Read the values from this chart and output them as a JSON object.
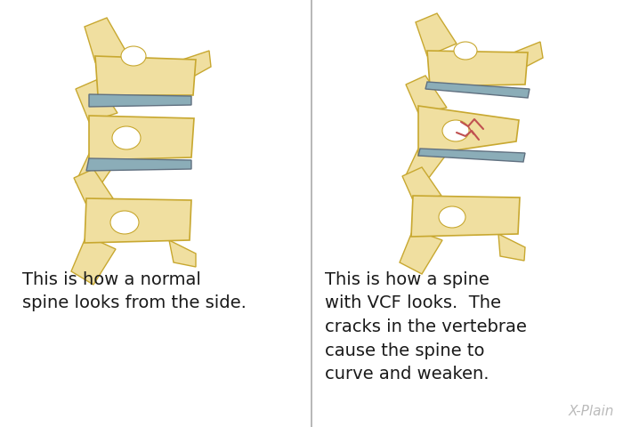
{
  "bg_color": "#FFFFFF",
  "divider_color": "#AAAAAA",
  "bone_fill": "#F0DFA0",
  "bone_edge": "#C8A830",
  "bone_shadow": "#D4B870",
  "disc_fill": "#8BADB8",
  "disc_edge": "#607080",
  "crack_color": "#C05050",
  "text_color": "#1A1A1A",
  "watermark_color": "#BBBBBB",
  "left_caption": "This is how a normal\nspine looks from the side.",
  "right_caption": "This is how a spine\nwith VCF looks.  The\ncracks in the vertebrae\ncause the spine to\ncurve and weaken.",
  "watermark": "X-Plain",
  "caption_fontsize": 14,
  "watermark_fontsize": 11
}
